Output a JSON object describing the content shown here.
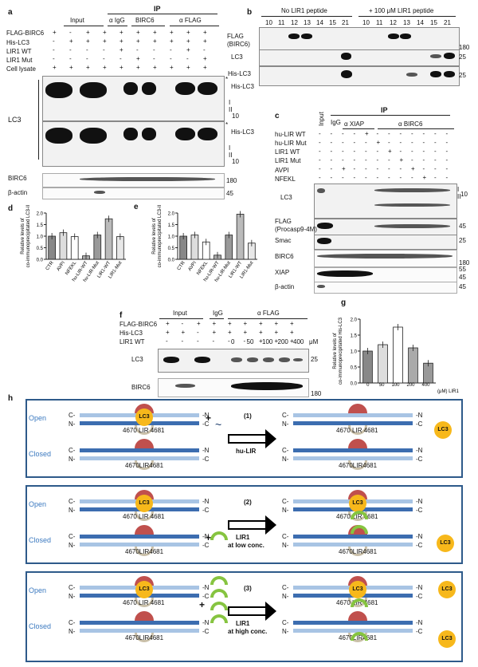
{
  "panel_a": {
    "label": "a",
    "ip": "IP",
    "col_input": "Input",
    "col_igg": "α IgG",
    "col_birc6": "BIRC6",
    "col_flag": "α  FLAG",
    "rows": [
      "FLAG-BIRC6",
      "His-LC3",
      "LIR1 WT",
      "LIR1 Mut",
      "Cell lysate"
    ],
    "lc3": "LC3",
    "his_lc3": "His-LC3",
    "i": "I",
    "ii": "II",
    "mw10": "10",
    "mw180": "180",
    "mw45": "45",
    "birc6": "BIRC6",
    "actin": "β-actin",
    "star": "*"
  },
  "panel_b": {
    "label": "b",
    "no_peptide": "No LIR1 peptide",
    "plus_peptide": "+ 100 μM LIR1 peptide",
    "fractions": [
      "10",
      "11",
      "12",
      "13",
      "14",
      "15",
      "21"
    ],
    "flag": "FLAG",
    "birc6": "(BIRC6)",
    "lc3": "LC3",
    "his_lc3": "His-LC3",
    "mw180": "180",
    "mw25": "25"
  },
  "panel_c": {
    "label": "c",
    "ip": "IP",
    "input": "Input",
    "igg": "IgG",
    "xiap": "α XIAP",
    "birc6col": "α BIRC6",
    "rows": [
      "hu-LIR WT",
      "hu-LIR Mut",
      "LIR1  WT",
      "LIR1  Mut",
      "AVPI",
      "NFEKL"
    ],
    "blots": [
      "LC3",
      "FLAG",
      "(Procasp9-4M)",
      "Smac",
      "BIRC6",
      "XIAP",
      "β-actin"
    ],
    "mw": [
      "10",
      "45",
      "25",
      "180",
      "55",
      "45",
      "45"
    ],
    "i": "I",
    "ii": "II"
  },
  "chart_d": {
    "label": "d",
    "ylabel1": "Relative levels of",
    "ylabel2": "co-immunoprecipitated LC3-II",
    "ticks": [
      "0.0",
      "0.5",
      "1.0",
      "1.5",
      "2.0"
    ],
    "categories": [
      "CTR",
      "AVPI",
      "NFEKL",
      "hu-LIR-WT",
      "hu-LIR-Mut",
      "LIR1-WT",
      "LIR1-Mut"
    ]
  },
  "chart_e": {
    "label": "e",
    "ylabel1": "Relative levels of",
    "ylabel2": "co-immunoprecipitated LC3-II",
    "ticks": [
      "0.0",
      "0.5",
      "1.0",
      "1.5",
      "2.0"
    ],
    "categories": [
      "CTR",
      "AVPI",
      "NFEKL",
      "hu-LIR-WT",
      "hu-LIR-Mut",
      "LIR1-WT",
      "LIR1-Mut"
    ]
  },
  "panel_f": {
    "label": "f",
    "input": "Input",
    "igg": "IgG",
    "flag": "α FLAG",
    "rows": [
      "FLAG-BIRC6",
      "His-LC3",
      "LIR1 WT"
    ],
    "conc": [
      "0",
      "50",
      "100",
      "200",
      "400"
    ],
    "um": "μM",
    "lc3": "LC3",
    "birc6": "BIRC6",
    "mw25": "25",
    "mw180": "180"
  },
  "chart_g": {
    "label": "g",
    "ylabel1": "Relative levels of",
    "ylabel2": "co-immunoprecipitated His-LC3",
    "ticks": [
      "0.0",
      "0.5",
      "1.0",
      "1.5",
      "2.0"
    ],
    "categories": [
      "0",
      "50",
      "100",
      "200",
      "400"
    ],
    "xunit": "(μM) LIR1"
  },
  "panel_h": {
    "label": "h",
    "open": "Open",
    "closed": "Closed",
    "c": "C-",
    "n": "N-",
    "nr": "-N",
    "cr": "-C",
    "lc3": "LC3",
    "lir_open": "4670  LIR 4681",
    "lir_closed": "4670LIR4681",
    "step1": "(1)",
    "step1_text": "hu-LIR",
    "step2": "(2)",
    "step2_text1": "LIR1",
    "step2_text2": "at low conc.",
    "step3": "(3)",
    "step3_text1": "LIR1",
    "step3_text2": "at high conc.",
    "plus": "+"
  },
  "chart_data": [
    {
      "type": "bar",
      "title": "",
      "xlabel": "",
      "ylabel": "Relative levels of co-immunoprecipitated LC3-II",
      "categories": [
        "CTR",
        "AVPI",
        "NFEKL",
        "hu-LIR-WT",
        "hu-LIR-Mut",
        "LIR1-WT",
        "LIR1-Mut"
      ],
      "values": [
        1.0,
        1.15,
        0.98,
        0.15,
        1.05,
        1.75,
        0.98
      ],
      "ylim": [
        0,
        2.0
      ]
    },
    {
      "type": "bar",
      "title": "",
      "xlabel": "",
      "ylabel": "Relative levels of co-immunoprecipitated LC3-II",
      "categories": [
        "CTR",
        "AVPI",
        "NFEKL",
        "hu-LIR-WT",
        "hu-LIR-Mut",
        "LIR1-WT",
        "LIR1-Mut"
      ],
      "values": [
        1.0,
        1.05,
        0.75,
        0.18,
        1.05,
        1.95,
        0.7
      ],
      "ylim": [
        0,
        2.0
      ]
    },
    {
      "type": "bar",
      "title": "",
      "xlabel": "(μM) LIR1",
      "ylabel": "Relative levels of co-immunoprecipitated His-LC3",
      "categories": [
        "0",
        "50",
        "100",
        "200",
        "400"
      ],
      "values": [
        1.0,
        1.2,
        1.75,
        1.1,
        0.62
      ],
      "ylim": [
        0,
        2.0
      ]
    }
  ]
}
